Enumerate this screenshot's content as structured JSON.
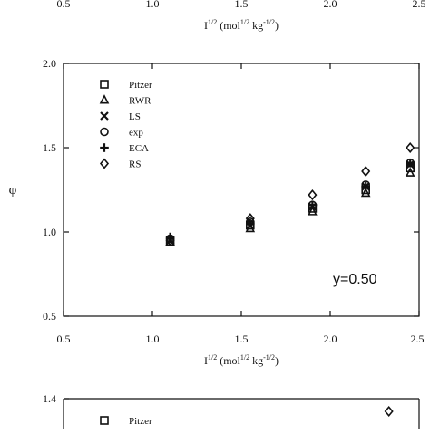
{
  "top_partial_axis": {
    "tick_labels": [
      "0.5",
      "1.0",
      "1.5",
      "2.0",
      "2.5"
    ],
    "xlabel_base": "I",
    "xlabel_sup": "1/2",
    "xlabel_unit_a": " (mol",
    "xlabel_unit_sup1": "1/2",
    "xlabel_unit_b": " kg",
    "xlabel_unit_sup2": "-1/2",
    "xlabel_unit_c": ")"
  },
  "chart_data": [
    {
      "type": "scatter",
      "ylabel": "φ",
      "xlim": [
        0.5,
        2.5
      ],
      "ylim": [
        0.5,
        2.0
      ],
      "x_ticks": [
        0.5,
        1.0,
        1.5,
        2.0,
        2.5
      ],
      "y_ticks": [
        0.5,
        1.0,
        1.5,
        2.0
      ],
      "x_tick_labels": [
        "0.5",
        "1.0",
        "1.5",
        "2.0",
        "2.5"
      ],
      "y_tick_labels": [
        "0.5",
        "1.0",
        "1.5",
        "2.0"
      ],
      "xlabel_base": "I",
      "xlabel_sup": "1/2",
      "xlabel_unit_a": " (mol",
      "xlabel_unit_sup1": "1/2",
      "xlabel_unit_b": " kg",
      "xlabel_unit_sup2": "-1/2",
      "xlabel_unit_c": ")",
      "annotation": "y=0.50",
      "legend_position": "top-left",
      "grid": false,
      "series": [
        {
          "name": "Pitzer",
          "marker": "square",
          "x": [
            1.1,
            1.55,
            1.9,
            2.2,
            2.45
          ],
          "y": [
            0.94,
            1.04,
            1.14,
            1.25,
            1.38
          ]
        },
        {
          "name": "RWR",
          "marker": "triangle",
          "x": [
            1.1,
            1.55,
            1.9,
            2.2,
            2.45
          ],
          "y": [
            0.94,
            1.02,
            1.12,
            1.23,
            1.35
          ]
        },
        {
          "name": "LS",
          "marker": "x",
          "x": [
            1.1,
            1.55,
            1.9,
            2.2,
            2.45
          ],
          "y": [
            0.95,
            1.04,
            1.15,
            1.27,
            1.4
          ]
        },
        {
          "name": "exp",
          "marker": "circle",
          "x": [
            1.1,
            1.55,
            1.9,
            2.2,
            2.45
          ],
          "y": [
            0.96,
            1.06,
            1.16,
            1.28,
            1.41
          ]
        },
        {
          "name": "ECA",
          "marker": "plus",
          "x": [
            1.1,
            1.55,
            1.9,
            2.2,
            2.45
          ],
          "y": [
            0.97,
            1.05,
            1.16,
            1.27,
            1.41
          ]
        },
        {
          "name": "RS",
          "marker": "diamond",
          "x": [
            1.1,
            1.55,
            1.9,
            2.2,
            2.45
          ],
          "y": [
            0.95,
            1.08,
            1.22,
            1.36,
            1.5
          ]
        }
      ]
    },
    {
      "type": "scatter",
      "partial": true,
      "ylim_top": 1.4,
      "y_tick_labels": [
        "1.4"
      ],
      "legend_visible": [
        "Pitzer"
      ],
      "series": [
        {
          "name": "RS",
          "marker": "diamond",
          "x": [
            2.33
          ],
          "y": [
            1.32
          ]
        }
      ]
    }
  ]
}
